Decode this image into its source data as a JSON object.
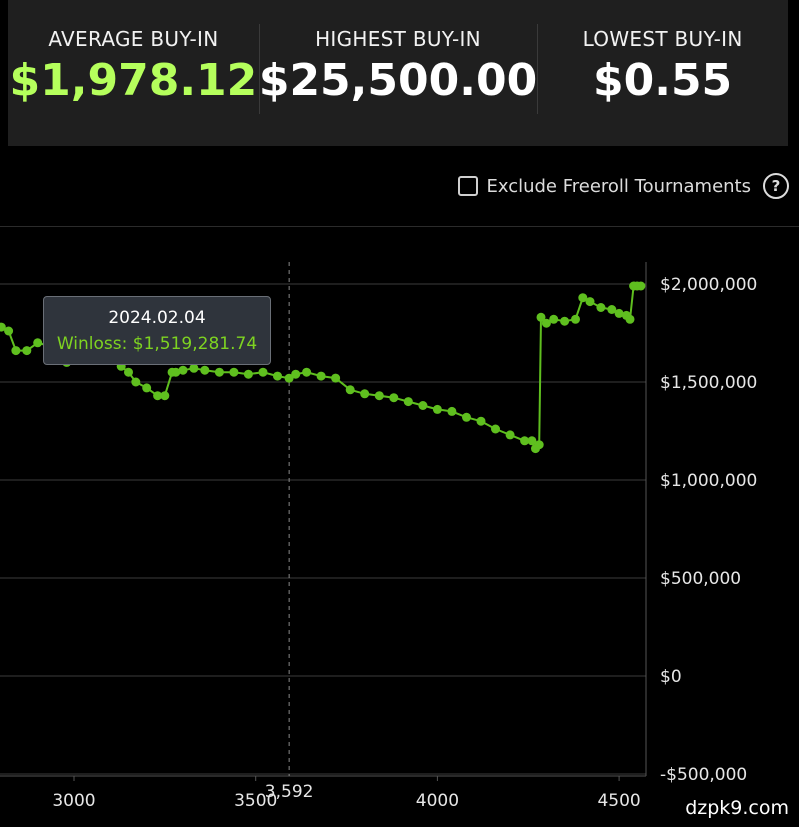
{
  "stats": [
    {
      "label": "AVERAGE BUY-IN",
      "value": "$1,978.12",
      "color": "#b5ff5c"
    },
    {
      "label": "HIGHEST BUY-IN",
      "value": "$25,500.00",
      "color": "#ffffff"
    },
    {
      "label": "LOWEST BUY-IN",
      "value": "$0.55",
      "color": "#ffffff"
    }
  ],
  "filter": {
    "label": "Exclude Freeroll Tournaments",
    "checked": false,
    "help_icon": "question-circle-icon"
  },
  "tooltip": {
    "date": "2024.02.04",
    "series_label": "Winloss",
    "value": "$1,519,281.74",
    "text": "Winloss: $1,519,281.74"
  },
  "crosshair_label": "3,592",
  "watermark": "dzpk9.com",
  "colors": {
    "line": "#5fbf1f",
    "tooltip_value": "#7ed321",
    "accent": "#b5ff5c"
  },
  "chart_data": {
    "type": "line",
    "xlabel": "",
    "ylabel": "",
    "xlim": [
      2800,
      4560
    ],
    "ylim": [
      -500000,
      2000000
    ],
    "x_ticks": [
      3000,
      3500,
      4000,
      4500
    ],
    "x_tick_labels": [
      "3000",
      "3500",
      "4000",
      "4500"
    ],
    "y_ticks": [
      -500000,
      0,
      500000,
      1000000,
      1500000,
      2000000
    ],
    "y_tick_labels": [
      "-$500,000",
      "$0",
      "$500,000",
      "$1,000,000",
      "$1,500,000",
      "$2,000,000"
    ],
    "grid": true,
    "crosshair_x": 3592,
    "series": [
      {
        "x": [
          2800,
          2820,
          2840,
          2870,
          2900,
          2940,
          2980,
          3020,
          3060,
          3100,
          3130,
          3150,
          3170,
          3200,
          3230,
          3250,
          3270,
          3280,
          3300,
          3330,
          3360,
          3400,
          3440,
          3480,
          3520,
          3560,
          3592,
          3610,
          3640,
          3680,
          3720,
          3760,
          3800,
          3840,
          3880,
          3920,
          3960,
          4000,
          4040,
          4080,
          4120,
          4160,
          4200,
          4240,
          4260,
          4270,
          4280,
          4285,
          4300,
          4320,
          4350,
          4380,
          4400,
          4420,
          4450,
          4480,
          4500,
          4520,
          4530,
          4540,
          4550,
          4560
        ],
        "y": [
          1780000,
          1760000,
          1660000,
          1660000,
          1700000,
          1680000,
          1600000,
          1620000,
          1640000,
          1610000,
          1580000,
          1550000,
          1500000,
          1470000,
          1430000,
          1430000,
          1550000,
          1550000,
          1560000,
          1570000,
          1560000,
          1550000,
          1550000,
          1540000,
          1550000,
          1530000,
          1519281.74,
          1540000,
          1550000,
          1530000,
          1520000,
          1460000,
          1440000,
          1430000,
          1420000,
          1400000,
          1380000,
          1360000,
          1350000,
          1320000,
          1300000,
          1260000,
          1230000,
          1200000,
          1200000,
          1160000,
          1180000,
          1830000,
          1800000,
          1820000,
          1810000,
          1820000,
          1930000,
          1910000,
          1880000,
          1870000,
          1850000,
          1840000,
          1820000,
          1990000,
          1990000,
          1990000
        ]
      }
    ]
  }
}
